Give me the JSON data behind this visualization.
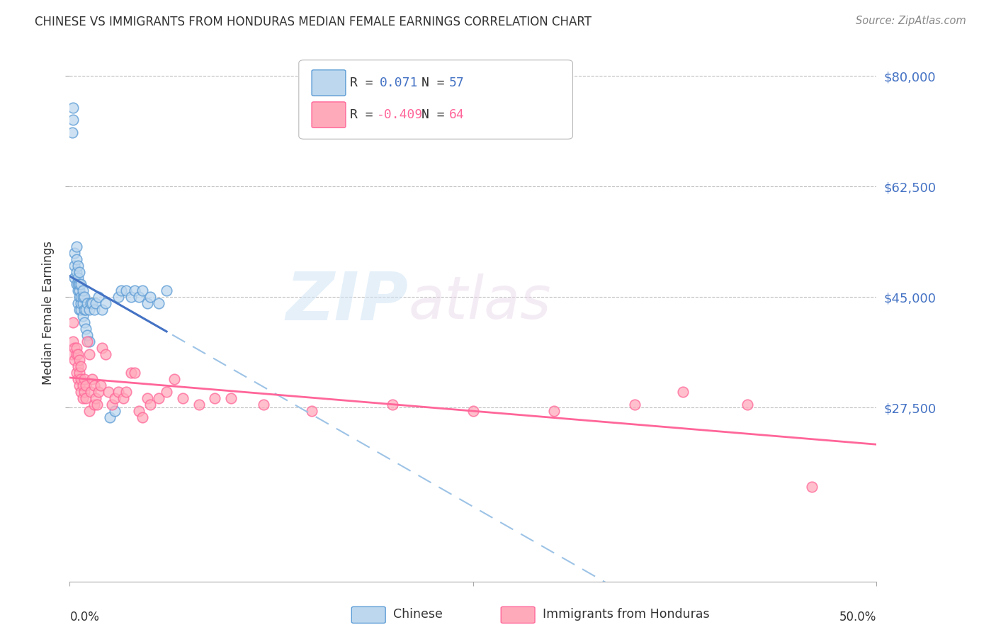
{
  "title": "CHINESE VS IMMIGRANTS FROM HONDURAS MEDIAN FEMALE EARNINGS CORRELATION CHART",
  "source": "Source: ZipAtlas.com",
  "ylabel": "Median Female Earnings",
  "ytick_labels": [
    "$27,500",
    "$45,000",
    "$62,500",
    "$80,000"
  ],
  "ytick_values": [
    27500,
    45000,
    62500,
    80000
  ],
  "ymin": 0,
  "ymax": 85000,
  "xmin": 0.0,
  "xmax": 0.5,
  "blue_color": "#5B9BD5",
  "blue_edge": "#5B9BD5",
  "blue_fill": "#BDD7EE",
  "pink_color": "#FF6699",
  "pink_edge": "#FF6699",
  "pink_fill": "#FFAABB",
  "blue_line_color": "#4472C4",
  "blue_dash_color": "#9DC3E6",
  "pink_line_color": "#FF6699",
  "legend_r1": "R =  0.071",
  "legend_n1": "N = 57",
  "legend_r2": "R = -0.409",
  "legend_n2": "N = 64",
  "watermark_zip": "ZIP",
  "watermark_atlas": "atlas",
  "chinese_x": [
    0.0015,
    0.002,
    0.002,
    0.003,
    0.003,
    0.003,
    0.004,
    0.004,
    0.004,
    0.004,
    0.005,
    0.005,
    0.005,
    0.005,
    0.005,
    0.006,
    0.006,
    0.006,
    0.006,
    0.006,
    0.007,
    0.007,
    0.007,
    0.007,
    0.008,
    0.008,
    0.008,
    0.008,
    0.009,
    0.009,
    0.009,
    0.01,
    0.01,
    0.011,
    0.011,
    0.012,
    0.012,
    0.013,
    0.014,
    0.015,
    0.016,
    0.018,
    0.02,
    0.022,
    0.025,
    0.028,
    0.03,
    0.032,
    0.035,
    0.038,
    0.04,
    0.043,
    0.045,
    0.048,
    0.05,
    0.055,
    0.06
  ],
  "chinese_y": [
    71000,
    73000,
    75000,
    50000,
    52000,
    48000,
    47000,
    49000,
    51000,
    53000,
    44000,
    46000,
    47000,
    48000,
    50000,
    43000,
    45000,
    46000,
    47000,
    49000,
    43000,
    44000,
    45000,
    47000,
    42000,
    44000,
    45000,
    46000,
    41000,
    43000,
    45000,
    40000,
    43000,
    39000,
    44000,
    38000,
    43000,
    44000,
    44000,
    43000,
    44000,
    45000,
    43000,
    44000,
    26000,
    27000,
    45000,
    46000,
    46000,
    45000,
    46000,
    45000,
    46000,
    44000,
    45000,
    44000,
    46000
  ],
  "honduras_x": [
    0.001,
    0.002,
    0.002,
    0.003,
    0.003,
    0.004,
    0.004,
    0.004,
    0.005,
    0.005,
    0.005,
    0.006,
    0.006,
    0.006,
    0.007,
    0.007,
    0.007,
    0.008,
    0.008,
    0.009,
    0.009,
    0.01,
    0.01,
    0.011,
    0.012,
    0.012,
    0.013,
    0.014,
    0.015,
    0.015,
    0.016,
    0.017,
    0.018,
    0.019,
    0.02,
    0.022,
    0.024,
    0.026,
    0.028,
    0.03,
    0.033,
    0.035,
    0.038,
    0.04,
    0.043,
    0.045,
    0.048,
    0.05,
    0.055,
    0.06,
    0.065,
    0.07,
    0.08,
    0.09,
    0.1,
    0.12,
    0.15,
    0.2,
    0.25,
    0.3,
    0.35,
    0.38,
    0.42,
    0.46
  ],
  "honduras_y": [
    36000,
    41000,
    38000,
    35000,
    37000,
    33000,
    36000,
    37000,
    32000,
    34000,
    36000,
    31000,
    33000,
    35000,
    30000,
    32000,
    34000,
    29000,
    31000,
    30000,
    32000,
    29000,
    31000,
    38000,
    36000,
    27000,
    30000,
    32000,
    28000,
    31000,
    29000,
    28000,
    30000,
    31000,
    37000,
    36000,
    30000,
    28000,
    29000,
    30000,
    29000,
    30000,
    33000,
    33000,
    27000,
    26000,
    29000,
    28000,
    29000,
    30000,
    32000,
    29000,
    28000,
    29000,
    29000,
    28000,
    27000,
    28000,
    27000,
    27000,
    28000,
    30000,
    28000,
    15000
  ]
}
